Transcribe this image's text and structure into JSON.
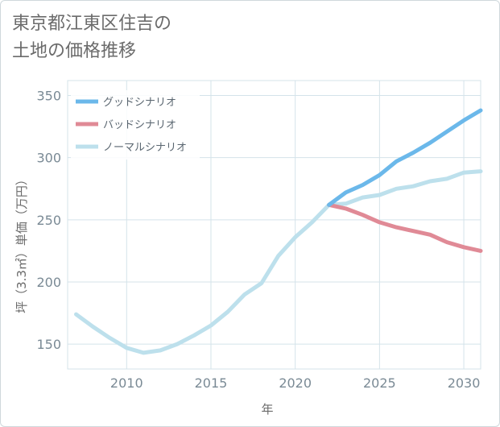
{
  "title_line1": "東京都江東区住吉の",
  "title_line2": "土地の価格推移",
  "chart_data": {
    "type": "line",
    "xlabel": "年",
    "ylabel": "坪（3.3㎡）単価（万円）",
    "xlim": [
      2006.5,
      2031
    ],
    "ylim": [
      130,
      362
    ],
    "xticks": [
      2010,
      2015,
      2020,
      2025,
      2030
    ],
    "yticks": [
      150,
      200,
      250,
      300,
      350
    ],
    "grid": true,
    "legend_position": "top-left",
    "series": [
      {
        "name": "グッドシナリオ",
        "color": "#6bb8ea",
        "x": [
          2022,
          2023,
          2024,
          2025,
          2026,
          2027,
          2028,
          2029,
          2030,
          2031
        ],
        "y": [
          262,
          272,
          278,
          286,
          297,
          304,
          312,
          321,
          330,
          338
        ]
      },
      {
        "name": "バッドシナリオ",
        "color": "#e08a96",
        "x": [
          2022,
          2023,
          2024,
          2025,
          2026,
          2027,
          2028,
          2029,
          2030,
          2031
        ],
        "y": [
          262,
          259,
          254,
          248,
          244,
          241,
          238,
          232,
          228,
          225
        ]
      },
      {
        "name": "ノーマルシナリオ",
        "color": "#bde0ec",
        "x": [
          2007,
          2008,
          2009,
          2010,
          2011,
          2012,
          2013,
          2014,
          2015,
          2016,
          2017,
          2018,
          2019,
          2020,
          2021,
          2022,
          2023,
          2024,
          2025,
          2026,
          2027,
          2028,
          2029,
          2030,
          2031
        ],
        "y": [
          174,
          164,
          155,
          147,
          143,
          145,
          150,
          157,
          165,
          176,
          190,
          199,
          221,
          236,
          248,
          262,
          263,
          268,
          270,
          275,
          277,
          281,
          283,
          288,
          289
        ]
      }
    ]
  }
}
